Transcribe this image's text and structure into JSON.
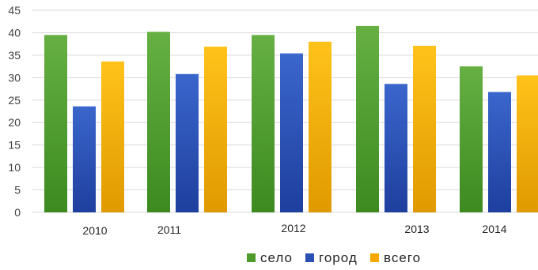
{
  "chart_data": {
    "type": "bar",
    "categories": [
      "2010",
      "2011",
      "2012",
      "2013",
      "2014"
    ],
    "series": [
      {
        "name": "село",
        "values": [
          39.5,
          40.2,
          39.5,
          41.5,
          32.5
        ],
        "color": "#4e9a2a"
      },
      {
        "name": "город",
        "values": [
          23.6,
          30.8,
          35.4,
          28.6,
          26.8
        ],
        "color": "#2a4fb5"
      },
      {
        "name": "всего",
        "values": [
          33.6,
          36.9,
          38.0,
          37.1,
          30.5
        ],
        "color": "#f5a800"
      }
    ],
    "ylim": [
      0,
      45
    ],
    "yticks": [
      0,
      5,
      10,
      15,
      20,
      25,
      30,
      35,
      40,
      45
    ],
    "grid": true,
    "legend_position": "bottom"
  }
}
